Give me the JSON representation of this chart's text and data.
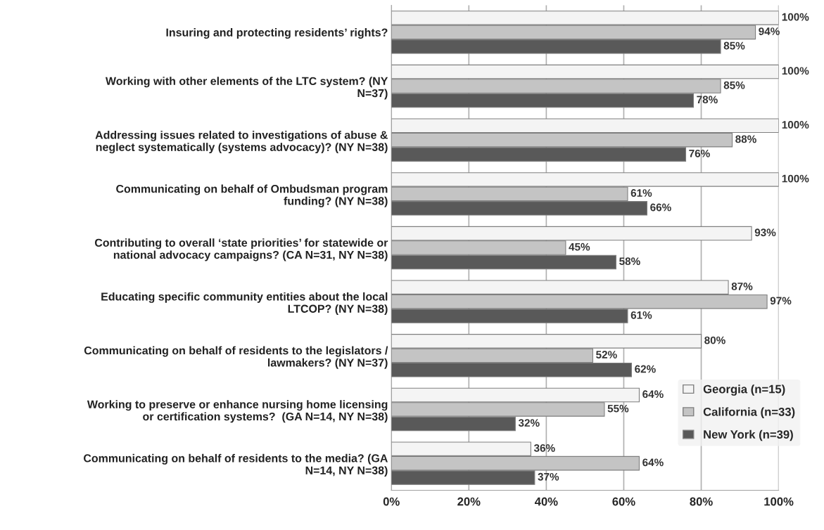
{
  "chart_data": {
    "type": "bar",
    "orientation": "horizontal",
    "categories": [
      "Insuring and protecting residents’ rights?",
      "Working with other elements of the LTC system? (NY\nN=37)",
      "Addressing issues related to investigations of abuse &\nneglect systematically (systems advocacy)? (NY N=38)",
      "Communicating on behalf of Ombudsman program\nfunding? (NY N=38)",
      "Contributing to overall ‘state priorities’ for statewide or\nnational advocacy campaigns? (CA N=31, NY N=38)",
      "Educating specific community entities about the local\nLTCOP? (NY N=38)",
      "Communicating on behalf of residents to the legislators /\nlawmakers? (NY N=37)",
      "Working to preserve or enhance nursing home licensing\nor certification systems?  (GA N=14, NY N=38)",
      "Communicating on behalf of residents to the media? (GA\nN=14, NY N=38)"
    ],
    "series": [
      {
        "name": "Georgia (n=15)",
        "color": "#f4f4f4",
        "values": [
          100,
          100,
          100,
          100,
          93,
          87,
          80,
          64,
          36
        ],
        "value_labels": [
          "100%",
          "100%",
          "100%",
          "100%",
          "93%",
          "87%",
          "80%",
          "64%",
          "36%"
        ]
      },
      {
        "name": "California (n=33)",
        "color": "#c4c4c4",
        "values": [
          94,
          85,
          88,
          61,
          45,
          97,
          52,
          55,
          64
        ],
        "value_labels": [
          "94%",
          "85%",
          "88%",
          "61%",
          "45%",
          "97%",
          "52%",
          "55%",
          "64%"
        ]
      },
      {
        "name": "New York (n=39)",
        "color": "#595959",
        "values": [
          85,
          78,
          76,
          66,
          58,
          61,
          62,
          32,
          37
        ],
        "value_labels": [
          "85%",
          "78%",
          "76%",
          "66%",
          "58%",
          "61%",
          "62%",
          "32%",
          "37%"
        ]
      }
    ],
    "xlim": [
      0,
      100
    ],
    "xticks": [
      {
        "value": 0,
        "label": "0%"
      },
      {
        "value": 20,
        "label": "20%"
      },
      {
        "value": 40,
        "label": "40%"
      },
      {
        "value": 60,
        "label": "60%"
      },
      {
        "value": 80,
        "label": "80%"
      },
      {
        "value": 100,
        "label": "100%"
      }
    ],
    "grid": "x",
    "legend": "bottom right"
  }
}
